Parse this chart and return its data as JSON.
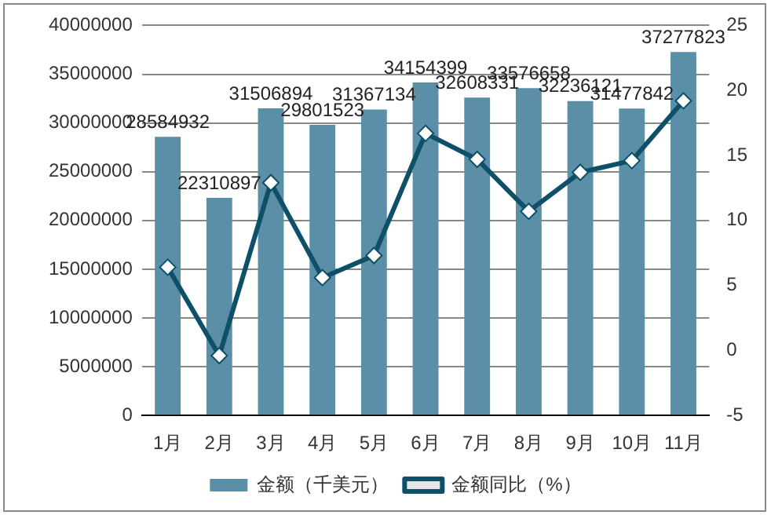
{
  "chart_data": {
    "type": "bar",
    "categories": [
      "1月",
      "2月",
      "3月",
      "4月",
      "5月",
      "6月",
      "7月",
      "8月",
      "9月",
      "10月",
      "11月"
    ],
    "series": [
      {
        "name": "金额（千美元）",
        "color": "#5b8fa8",
        "values": [
          28584932,
          22310897,
          31506894,
          29801523,
          31367134,
          34154399,
          32608331,
          33576658,
          32236121,
          31477842,
          37277823
        ],
        "value_labels": [
          "28584932",
          "22310897",
          "31506894",
          "29801523",
          "31367134",
          "34154399",
          "32608331",
          "33576658",
          "32236121",
          "31477842",
          "37277823"
        ]
      },
      {
        "name": "金额同比（%）",
        "type": "line",
        "axis": "y2",
        "color": "#0d5068",
        "values": [
          6.4,
          -0.4,
          12.9,
          5.6,
          7.3,
          16.7,
          14.7,
          10.7,
          13.7,
          14.6,
          19.2
        ]
      }
    ],
    "ylim": [
      0,
      40000000
    ],
    "yticks": [
      0,
      5000000,
      10000000,
      15000000,
      20000000,
      25000000,
      30000000,
      35000000,
      40000000
    ],
    "y2lim": [
      -5,
      25
    ],
    "y2ticks": [
      -5,
      0,
      5,
      10,
      15,
      20,
      25
    ],
    "grid": "y",
    "legend": "bottom",
    "marker": "diamond",
    "line_style": "solid"
  }
}
